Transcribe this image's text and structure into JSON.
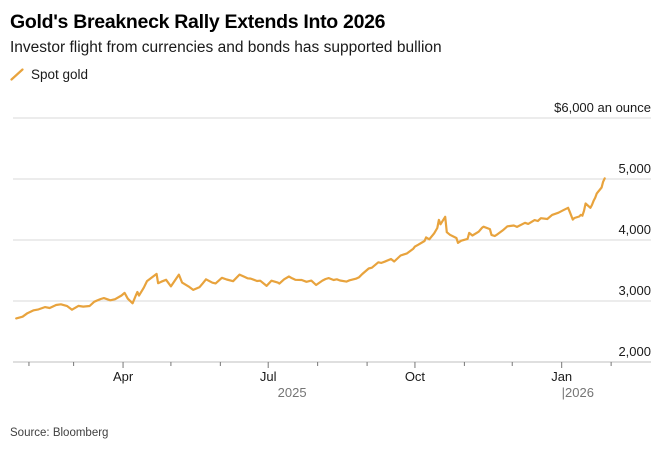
{
  "header": {
    "title": "Gold's Breakneck Rally Extends Into 2026",
    "subtitle": "Investor flight from currencies and bonds has supported bullion"
  },
  "legend": {
    "items": [
      {
        "label": "Spot gold",
        "marker": "slash-icon",
        "color": "#E8A33D"
      }
    ]
  },
  "footer": {
    "source": "Source: Bloomberg"
  },
  "colors": {
    "line": "#E8A33D",
    "gridline": "#D9D9D9",
    "axis": "#BFBFBF",
    "tick": "#777777"
  },
  "chart_data": {
    "type": "line",
    "title": "Gold's Breakneck Rally Extends Into 2026",
    "subtitle": "Investor flight from currencies and bonds has supported bullion",
    "unit_label": "$6,000 an ounce",
    "xlabel": "",
    "ylabel": "",
    "ylim": [
      2000,
      6000
    ],
    "xlim": [
      "2025-01-22",
      "2026-02-26"
    ],
    "grid": "horizontal",
    "legend_position": "top-left",
    "y_ticks": [
      {
        "value": 2000,
        "label": "2,000"
      },
      {
        "value": 3000,
        "label": "3,000"
      },
      {
        "value": 4000,
        "label": "4,000"
      },
      {
        "value": 5000,
        "label": "5,000"
      },
      {
        "value": 6000,
        "label": "$6,000 an ounce"
      }
    ],
    "x_ticks": [
      {
        "date": "2025-02-01",
        "label": "",
        "major": false
      },
      {
        "date": "2025-03-01",
        "label": "",
        "major": false
      },
      {
        "date": "2025-04-01",
        "label": "Apr",
        "major": true
      },
      {
        "date": "2025-05-01",
        "label": "",
        "major": false
      },
      {
        "date": "2025-06-01",
        "label": "",
        "major": false
      },
      {
        "date": "2025-07-01",
        "label": "Jul",
        "major": true
      },
      {
        "date": "2025-08-01",
        "label": "",
        "major": false
      },
      {
        "date": "2025-09-01",
        "label": "",
        "major": false
      },
      {
        "date": "2025-10-01",
        "label": "Oct",
        "major": true
      },
      {
        "date": "2025-11-01",
        "label": "",
        "major": false
      },
      {
        "date": "2025-12-01",
        "label": "",
        "major": false
      },
      {
        "date": "2026-01-01",
        "label": "Jan",
        "major": true
      },
      {
        "date": "2026-02-01",
        "label": "",
        "major": false
      }
    ],
    "year_labels": [
      {
        "date": "2025-07-16",
        "label": "2025",
        "anchor": "middle"
      },
      {
        "date": "2026-01-01",
        "label": "|2026",
        "anchor": "start"
      }
    ],
    "series": [
      {
        "name": "Spot gold",
        "color": "#E8A33D",
        "points": [
          [
            "2025-01-24",
            2715
          ],
          [
            "2025-01-28",
            2742
          ],
          [
            "2025-01-31",
            2800
          ],
          [
            "2025-02-04",
            2848
          ],
          [
            "2025-02-07",
            2862
          ],
          [
            "2025-02-11",
            2900
          ],
          [
            "2025-02-14",
            2886
          ],
          [
            "2025-02-18",
            2934
          ],
          [
            "2025-02-21",
            2946
          ],
          [
            "2025-02-25",
            2916
          ],
          [
            "2025-02-28",
            2858
          ],
          [
            "2025-03-04",
            2920
          ],
          [
            "2025-03-07",
            2908
          ],
          [
            "2025-03-11",
            2918
          ],
          [
            "2025-03-14",
            2988
          ],
          [
            "2025-03-18",
            3032
          ],
          [
            "2025-03-20",
            3048
          ],
          [
            "2025-03-24",
            3012
          ],
          [
            "2025-03-27",
            3030
          ],
          [
            "2025-03-31",
            3090
          ],
          [
            "2025-04-02",
            3132
          ],
          [
            "2025-04-04",
            3038
          ],
          [
            "2025-04-07",
            2962
          ],
          [
            "2025-04-09",
            3090
          ],
          [
            "2025-04-10",
            3148
          ],
          [
            "2025-04-11",
            3088
          ],
          [
            "2025-04-14",
            3218
          ],
          [
            "2025-04-16",
            3326
          ],
          [
            "2025-04-22",
            3445
          ],
          [
            "2025-04-23",
            3292
          ],
          [
            "2025-04-25",
            3316
          ],
          [
            "2025-04-28",
            3348
          ],
          [
            "2025-05-01",
            3240
          ],
          [
            "2025-05-06",
            3432
          ],
          [
            "2025-05-08",
            3302
          ],
          [
            "2025-05-12",
            3240
          ],
          [
            "2025-05-15",
            3182
          ],
          [
            "2025-05-19",
            3228
          ],
          [
            "2025-05-21",
            3290
          ],
          [
            "2025-05-23",
            3356
          ],
          [
            "2025-05-27",
            3300
          ],
          [
            "2025-05-29",
            3288
          ],
          [
            "2025-06-02",
            3380
          ],
          [
            "2025-06-05",
            3352
          ],
          [
            "2025-06-09",
            3324
          ],
          [
            "2025-06-13",
            3432
          ],
          [
            "2025-06-16",
            3396
          ],
          [
            "2025-06-18",
            3372
          ],
          [
            "2025-06-20",
            3368
          ],
          [
            "2025-06-24",
            3328
          ],
          [
            "2025-06-26",
            3332
          ],
          [
            "2025-06-30",
            3248
          ],
          [
            "2025-07-03",
            3332
          ],
          [
            "2025-07-07",
            3302
          ],
          [
            "2025-07-08",
            3286
          ],
          [
            "2025-07-11",
            3356
          ],
          [
            "2025-07-14",
            3402
          ],
          [
            "2025-07-16",
            3372
          ],
          [
            "2025-07-18",
            3348
          ],
          [
            "2025-07-22",
            3344
          ],
          [
            "2025-07-25",
            3314
          ],
          [
            "2025-07-28",
            3334
          ],
          [
            "2025-07-31",
            3262
          ],
          [
            "2025-08-04",
            3334
          ],
          [
            "2025-08-06",
            3360
          ],
          [
            "2025-08-08",
            3376
          ],
          [
            "2025-08-11",
            3344
          ],
          [
            "2025-08-13",
            3356
          ],
          [
            "2025-08-15",
            3336
          ],
          [
            "2025-08-19",
            3318
          ],
          [
            "2025-08-21",
            3340
          ],
          [
            "2025-08-25",
            3366
          ],
          [
            "2025-08-27",
            3390
          ],
          [
            "2025-08-29",
            3442
          ],
          [
            "2025-09-02",
            3532
          ],
          [
            "2025-09-04",
            3546
          ],
          [
            "2025-09-08",
            3634
          ],
          [
            "2025-09-10",
            3624
          ],
          [
            "2025-09-12",
            3644
          ],
          [
            "2025-09-16",
            3688
          ],
          [
            "2025-09-18",
            3648
          ],
          [
            "2025-09-22",
            3746
          ],
          [
            "2025-09-24",
            3764
          ],
          [
            "2025-09-26",
            3780
          ],
          [
            "2025-09-30",
            3858
          ],
          [
            "2025-10-01",
            3892
          ],
          [
            "2025-10-03",
            3922
          ],
          [
            "2025-10-07",
            3984
          ],
          [
            "2025-10-08",
            4042
          ],
          [
            "2025-10-10",
            4012
          ],
          [
            "2025-10-13",
            4108
          ],
          [
            "2025-10-15",
            4196
          ],
          [
            "2025-10-16",
            4330
          ],
          [
            "2025-10-17",
            4258
          ],
          [
            "2025-10-20",
            4381
          ],
          [
            "2025-10-21",
            4128
          ],
          [
            "2025-10-23",
            4086
          ],
          [
            "2025-10-27",
            4032
          ],
          [
            "2025-10-28",
            3952
          ],
          [
            "2025-10-30",
            3988
          ],
          [
            "2025-11-03",
            4018
          ],
          [
            "2025-11-04",
            4116
          ],
          [
            "2025-11-06",
            4074
          ],
          [
            "2025-11-10",
            4136
          ],
          [
            "2025-11-12",
            4198
          ],
          [
            "2025-11-13",
            4218
          ],
          [
            "2025-11-17",
            4178
          ],
          [
            "2025-11-18",
            4084
          ],
          [
            "2025-11-20",
            4066
          ],
          [
            "2025-11-21",
            4080
          ],
          [
            "2025-11-25",
            4158
          ],
          [
            "2025-11-28",
            4224
          ],
          [
            "2025-12-02",
            4238
          ],
          [
            "2025-12-04",
            4214
          ],
          [
            "2025-12-09",
            4282
          ],
          [
            "2025-12-11",
            4264
          ],
          [
            "2025-12-15",
            4326
          ],
          [
            "2025-12-17",
            4312
          ],
          [
            "2025-12-19",
            4358
          ],
          [
            "2025-12-23",
            4344
          ],
          [
            "2025-12-26",
            4412
          ],
          [
            "2025-12-30",
            4448
          ],
          [
            "2026-01-02",
            4488
          ],
          [
            "2026-01-05",
            4528
          ],
          [
            "2026-01-06",
            4464
          ],
          [
            "2026-01-08",
            4334
          ],
          [
            "2026-01-09",
            4360
          ],
          [
            "2026-01-12",
            4386
          ],
          [
            "2026-01-13",
            4412
          ],
          [
            "2026-01-14",
            4398
          ],
          [
            "2026-01-15",
            4478
          ],
          [
            "2026-01-16",
            4598
          ],
          [
            "2026-01-19",
            4528
          ],
          [
            "2026-01-20",
            4576
          ],
          [
            "2026-01-21",
            4642
          ],
          [
            "2026-01-22",
            4694
          ],
          [
            "2026-01-23",
            4764
          ],
          [
            "2026-01-26",
            4860
          ],
          [
            "2026-01-27",
            4954
          ],
          [
            "2026-01-28",
            5010
          ]
        ]
      }
    ]
  }
}
